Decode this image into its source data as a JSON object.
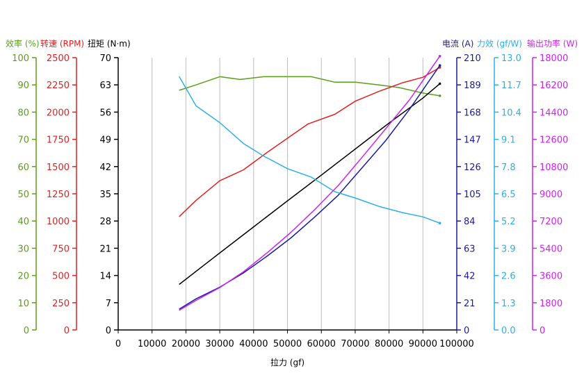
{
  "chart_data": {
    "type": "line",
    "xlabel": "拉力 (gf)",
    "x_ticks": [
      "0",
      "10000",
      "20000",
      "30000",
      "40000",
      "50000",
      "60000",
      "70000",
      "80000",
      "90000",
      "100000"
    ],
    "xlim": [
      0,
      100000
    ],
    "axes": [
      {
        "key": "eff",
        "label": "效率 (%)",
        "color": "#5a9e1a",
        "side": "left",
        "min": 0,
        "max": 100,
        "ticks": [
          "0",
          "10",
          "20",
          "30",
          "40",
          "50",
          "60",
          "70",
          "80",
          "90",
          "100"
        ]
      },
      {
        "key": "rpm",
        "label": "转速 (RPM)",
        "color": "#e02020",
        "side": "left",
        "min": 0,
        "max": 2500,
        "ticks": [
          "0",
          "250",
          "500",
          "750",
          "1000",
          "1250",
          "1500",
          "1750",
          "2000",
          "2250",
          "2500"
        ]
      },
      {
        "key": "torque",
        "label": "扭矩 (N·m)",
        "color": "#000000",
        "side": "left",
        "min": 0,
        "max": 70,
        "ticks": [
          "0",
          "7",
          "14",
          "21",
          "28",
          "35",
          "42",
          "49",
          "56",
          "63",
          "70"
        ]
      },
      {
        "key": "curr",
        "label": "电流 (A)",
        "color": "#1a1a9e",
        "side": "right",
        "min": 0,
        "max": 210,
        "ticks": [
          "0",
          "21",
          "42",
          "63",
          "84",
          "105",
          "126",
          "147",
          "168",
          "189",
          "210"
        ]
      },
      {
        "key": "forceeff",
        "label": "力效 (gf/W)",
        "color": "#2ab0e8",
        "side": "right",
        "min": 0,
        "max": 13,
        "ticks": [
          "0.0",
          "1.3",
          "2.6",
          "3.9",
          "5.2",
          "6.5",
          "7.8",
          "9.1",
          "10.4",
          "11.7",
          "13.0"
        ]
      },
      {
        "key": "power",
        "label": "输出功率 (W)",
        "color": "#cc22ee",
        "side": "right",
        "min": 0,
        "max": 18000,
        "ticks": [
          "0",
          "1800",
          "3600",
          "5400",
          "7200",
          "9000",
          "10800",
          "12600",
          "14400",
          "16200",
          "18000"
        ]
      }
    ],
    "series": [
      {
        "axis": "eff",
        "color": "#5a9e1a",
        "x": [
          18000,
          23000,
          30000,
          36000,
          43000,
          50000,
          57000,
          64000,
          70000,
          77000,
          83000,
          90000,
          95000
        ],
        "y": [
          88,
          90,
          93,
          92,
          93,
          93,
          93,
          91,
          91,
          90,
          89,
          87,
          86
        ]
      },
      {
        "axis": "rpm",
        "color": "#e02020",
        "x": [
          18000,
          23000,
          30000,
          37000,
          44000,
          50000,
          56000,
          64000,
          70000,
          77000,
          84000,
          90000,
          95000
        ],
        "y": [
          1040,
          1190,
          1370,
          1470,
          1630,
          1760,
          1890,
          1980,
          2100,
          2190,
          2270,
          2320,
          2410
        ]
      },
      {
        "axis": "torque",
        "color": "#000000",
        "x": [
          18000,
          30000,
          40000,
          50000,
          60000,
          70000,
          80000,
          90000,
          95000
        ],
        "y": [
          11.7,
          19.8,
          26.5,
          33.2,
          39.8,
          46.5,
          53.2,
          59.6,
          63.3
        ]
      },
      {
        "axis": "curr",
        "color": "#1a1a9e",
        "x": [
          18000,
          23000,
          30000,
          37000,
          44000,
          51000,
          58000,
          65000,
          72000,
          79000,
          86000,
          95000
        ],
        "y": [
          16,
          24,
          33,
          44,
          57,
          71,
          87,
          104,
          125,
          146,
          170,
          204
        ]
      },
      {
        "axis": "forceeff",
        "color": "#2ab0e8",
        "x": [
          18000,
          23000,
          30000,
          37000,
          43000,
          50000,
          57000,
          64000,
          70000,
          77000,
          84000,
          90000,
          95000
        ],
        "y": [
          12.1,
          10.7,
          9.9,
          8.9,
          8.3,
          7.7,
          7.3,
          6.6,
          6.3,
          5.9,
          5.6,
          5.4,
          5.1
        ]
      },
      {
        "axis": "power",
        "color": "#cc22ee",
        "x": [
          18000,
          23000,
          30000,
          37000,
          44000,
          51000,
          58000,
          65000,
          72000,
          79000,
          86000,
          95000
        ],
        "y": [
          1300,
          1950,
          2800,
          3850,
          5100,
          6450,
          7950,
          9550,
          11400,
          13300,
          15200,
          18100
        ]
      }
    ],
    "grid": "vertical"
  }
}
